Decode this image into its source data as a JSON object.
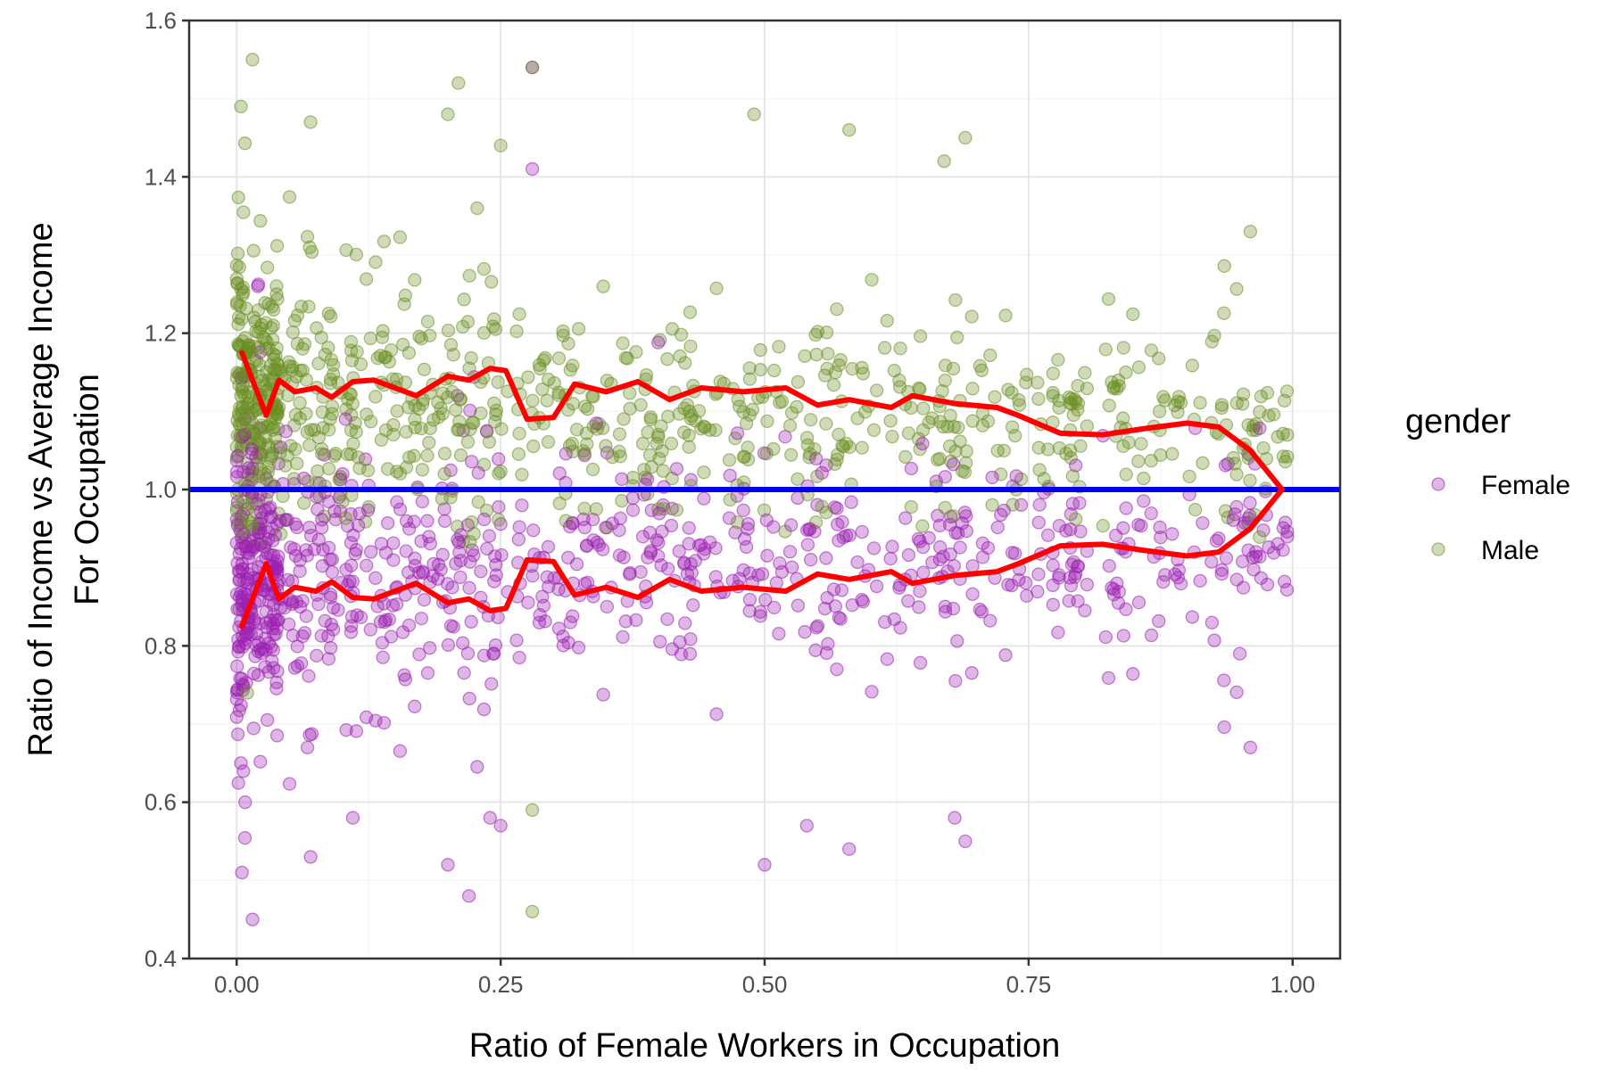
{
  "chart_data": {
    "type": "scatter",
    "title": "",
    "xlabel": "Ratio of Female Workers in Occupation",
    "ylabel_line1": "Ratio of Income vs Average Income",
    "ylabel_line2": "For Occupation",
    "xlim": [
      -0.045,
      1.045
    ],
    "ylim": [
      0.4,
      1.6
    ],
    "x_ticks": [
      0.0,
      0.25,
      0.5,
      0.75,
      1.0
    ],
    "x_tick_labels": [
      "0.00",
      "0.25",
      "0.50",
      "0.75",
      "1.00"
    ],
    "y_ticks": [
      0.4,
      0.6,
      0.8,
      1.0,
      1.2,
      1.4,
      1.6
    ],
    "y_tick_labels": [
      "0.4",
      "0.6",
      "0.8",
      "1.0",
      "1.2",
      "1.4",
      "1.6"
    ],
    "grid": true,
    "legend": {
      "title": "gender",
      "position": "right",
      "entries": [
        {
          "label": "Female",
          "color": "#9b1fb0"
        },
        {
          "label": "Male",
          "color": "#6b8e23"
        }
      ]
    },
    "reference_line": {
      "y": 1.0,
      "color": "#0000ee"
    },
    "series": [
      {
        "name": "Female",
        "color": "#9b1fb0",
        "highlighted_points": [
          {
            "x": 0.005,
            "y": 0.51
          },
          {
            "x": 0.015,
            "y": 0.45
          },
          {
            "x": 0.004,
            "y": 0.65
          },
          {
            "x": 0.008,
            "y": 0.6
          },
          {
            "x": 0.07,
            "y": 0.53
          },
          {
            "x": 0.11,
            "y": 0.58
          },
          {
            "x": 0.2,
            "y": 0.52
          },
          {
            "x": 0.22,
            "y": 0.48
          },
          {
            "x": 0.25,
            "y": 0.57
          },
          {
            "x": 0.24,
            "y": 0.58
          },
          {
            "x": 0.5,
            "y": 0.52
          },
          {
            "x": 0.54,
            "y": 0.57
          },
          {
            "x": 0.58,
            "y": 0.54
          },
          {
            "x": 0.68,
            "y": 0.58
          },
          {
            "x": 0.69,
            "y": 0.55
          },
          {
            "x": 0.96,
            "y": 0.67
          },
          {
            "x": 0.95,
            "y": 0.79
          },
          {
            "x": 0.28,
            "y": 1.41
          },
          {
            "x": 0.28,
            "y": 1.54
          },
          {
            "x": 0.02,
            "y": 1.26
          }
        ]
      },
      {
        "name": "Male",
        "color": "#6b8e23",
        "highlighted_points": [
          {
            "x": 0.015,
            "y": 1.55
          },
          {
            "x": 0.004,
            "y": 1.49
          },
          {
            "x": 0.21,
            "y": 1.52
          },
          {
            "x": 0.28,
            "y": 1.54
          },
          {
            "x": 0.49,
            "y": 1.48
          },
          {
            "x": 0.58,
            "y": 1.46
          },
          {
            "x": 0.67,
            "y": 1.42
          },
          {
            "x": 0.69,
            "y": 1.45
          },
          {
            "x": 0.07,
            "y": 1.47
          },
          {
            "x": 0.2,
            "y": 1.48
          },
          {
            "x": 0.25,
            "y": 1.44
          },
          {
            "x": 0.96,
            "y": 1.33
          },
          {
            "x": 0.28,
            "y": 0.46
          },
          {
            "x": 0.28,
            "y": 0.59
          },
          {
            "x": 0.01,
            "y": 0.74
          }
        ]
      },
      {
        "name": "Male trend",
        "color": "#ff0000",
        "type": "line",
        "points": [
          {
            "x": 0.005,
            "y": 1.175
          },
          {
            "x": 0.015,
            "y": 1.14
          },
          {
            "x": 0.028,
            "y": 1.095
          },
          {
            "x": 0.04,
            "y": 1.14
          },
          {
            "x": 0.055,
            "y": 1.125
          },
          {
            "x": 0.075,
            "y": 1.13
          },
          {
            "x": 0.09,
            "y": 1.118
          },
          {
            "x": 0.11,
            "y": 1.138
          },
          {
            "x": 0.13,
            "y": 1.14
          },
          {
            "x": 0.17,
            "y": 1.12
          },
          {
            "x": 0.2,
            "y": 1.145
          },
          {
            "x": 0.22,
            "y": 1.14
          },
          {
            "x": 0.24,
            "y": 1.155
          },
          {
            "x": 0.255,
            "y": 1.152
          },
          {
            "x": 0.275,
            "y": 1.09
          },
          {
            "x": 0.3,
            "y": 1.092
          },
          {
            "x": 0.32,
            "y": 1.135
          },
          {
            "x": 0.35,
            "y": 1.125
          },
          {
            "x": 0.38,
            "y": 1.138
          },
          {
            "x": 0.41,
            "y": 1.115
          },
          {
            "x": 0.44,
            "y": 1.13
          },
          {
            "x": 0.48,
            "y": 1.125
          },
          {
            "x": 0.52,
            "y": 1.13
          },
          {
            "x": 0.55,
            "y": 1.108
          },
          {
            "x": 0.58,
            "y": 1.115
          },
          {
            "x": 0.62,
            "y": 1.105
          },
          {
            "x": 0.64,
            "y": 1.12
          },
          {
            "x": 0.68,
            "y": 1.11
          },
          {
            "x": 0.72,
            "y": 1.105
          },
          {
            "x": 0.74,
            "y": 1.095
          },
          {
            "x": 0.78,
            "y": 1.072
          },
          {
            "x": 0.82,
            "y": 1.07
          },
          {
            "x": 0.86,
            "y": 1.078
          },
          {
            "x": 0.9,
            "y": 1.085
          },
          {
            "x": 0.93,
            "y": 1.08
          },
          {
            "x": 0.96,
            "y": 1.05
          },
          {
            "x": 0.99,
            "y": 1.0
          }
        ]
      },
      {
        "name": "Female trend",
        "color": "#ff0000",
        "type": "line",
        "points": [
          {
            "x": 0.005,
            "y": 0.825
          },
          {
            "x": 0.015,
            "y": 0.86
          },
          {
            "x": 0.028,
            "y": 0.905
          },
          {
            "x": 0.04,
            "y": 0.86
          },
          {
            "x": 0.055,
            "y": 0.875
          },
          {
            "x": 0.075,
            "y": 0.87
          },
          {
            "x": 0.09,
            "y": 0.882
          },
          {
            "x": 0.11,
            "y": 0.862
          },
          {
            "x": 0.13,
            "y": 0.86
          },
          {
            "x": 0.17,
            "y": 0.88
          },
          {
            "x": 0.2,
            "y": 0.855
          },
          {
            "x": 0.22,
            "y": 0.86
          },
          {
            "x": 0.24,
            "y": 0.845
          },
          {
            "x": 0.255,
            "y": 0.848
          },
          {
            "x": 0.275,
            "y": 0.91
          },
          {
            "x": 0.3,
            "y": 0.908
          },
          {
            "x": 0.32,
            "y": 0.865
          },
          {
            "x": 0.35,
            "y": 0.875
          },
          {
            "x": 0.38,
            "y": 0.862
          },
          {
            "x": 0.41,
            "y": 0.885
          },
          {
            "x": 0.44,
            "y": 0.87
          },
          {
            "x": 0.48,
            "y": 0.875
          },
          {
            "x": 0.52,
            "y": 0.87
          },
          {
            "x": 0.55,
            "y": 0.892
          },
          {
            "x": 0.58,
            "y": 0.885
          },
          {
            "x": 0.62,
            "y": 0.895
          },
          {
            "x": 0.64,
            "y": 0.88
          },
          {
            "x": 0.68,
            "y": 0.89
          },
          {
            "x": 0.72,
            "y": 0.895
          },
          {
            "x": 0.74,
            "y": 0.905
          },
          {
            "x": 0.78,
            "y": 0.928
          },
          {
            "x": 0.82,
            "y": 0.93
          },
          {
            "x": 0.86,
            "y": 0.922
          },
          {
            "x": 0.9,
            "y": 0.915
          },
          {
            "x": 0.93,
            "y": 0.92
          },
          {
            "x": 0.96,
            "y": 0.95
          },
          {
            "x": 0.99,
            "y": 1.0
          }
        ]
      }
    ],
    "scatter_density": {
      "male_band_center": 1.12,
      "female_band_center": 0.88,
      "points_per_series": 900
    }
  }
}
